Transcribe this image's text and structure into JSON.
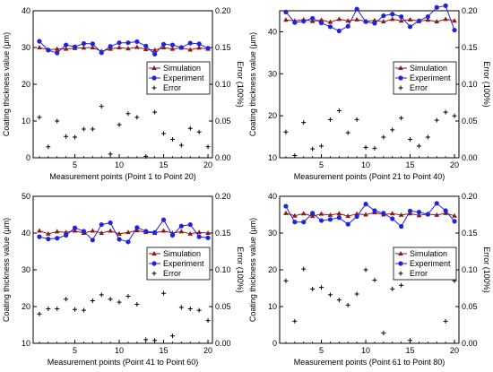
{
  "chart_data": [
    {
      "type": "line",
      "xlabel": "Measurement points (Point 1 to Point 20)",
      "ylabel": "Coating thickness value (μm)",
      "y2label": "Error (100%)",
      "xlim": [
        0.3,
        20.5
      ],
      "ylim": [
        0,
        40
      ],
      "y2lim": [
        0,
        0.2
      ],
      "xticks": [
        "5",
        "10",
        "15",
        "20"
      ],
      "yticks": [
        "0",
        "10",
        "20",
        "30",
        "40"
      ],
      "y2ticks": [
        "0.00",
        "0.05",
        "0.10",
        "0.15",
        "0.20"
      ],
      "legend_position": "center-right",
      "x": [
        1,
        2,
        3,
        4,
        5,
        6,
        7,
        8,
        9,
        10,
        11,
        12,
        13,
        14,
        15,
        16,
        17,
        18,
        19,
        20
      ],
      "series": [
        {
          "name": "Simulation",
          "color": "#8b1a1a",
          "marker": "triangle",
          "axis": "left",
          "values": [
            30.0,
            29.4,
            29.6,
            29.6,
            29.8,
            29.9,
            30.0,
            29.0,
            29.6,
            30.0,
            29.7,
            30.1,
            29.5,
            29.3,
            30.0,
            29.6,
            29.9,
            29.4,
            29.9,
            29.6
          ]
        },
        {
          "name": "Experiment",
          "color": "#2222dd",
          "marker": "circle",
          "axis": "left",
          "values": [
            31.7,
            29.3,
            28.5,
            30.7,
            30.2,
            31.1,
            31.0,
            28.6,
            30.3,
            31.3,
            31.3,
            31.6,
            30.4,
            28.2,
            30.9,
            30.7,
            30.0,
            31.2,
            31.0,
            29.8
          ]
        },
        {
          "name": "Error",
          "color": "#000000",
          "marker": "plus",
          "axis": "right",
          "values": [
            0.055,
            0.015,
            0.05,
            0.029,
            0.028,
            0.039,
            0.039,
            0.07,
            0.005,
            0.045,
            0.06,
            0.055,
            0.002,
            0.062,
            0.033,
            0.025,
            0.017,
            0.04,
            0.035,
            0.015
          ]
        }
      ]
    },
    {
      "type": "line",
      "xlabel": "Measurement points (Point 21 to Point 40)",
      "ylabel": "Coating thickness value (μm)",
      "y2label": "Error (100%)",
      "xlim": [
        0.3,
        20.5
      ],
      "ylim": [
        10,
        45
      ],
      "y2lim": [
        0,
        0.2
      ],
      "xticks": [
        "5",
        "10",
        "15",
        "20"
      ],
      "yticks": [
        "10",
        "20",
        "30",
        "40"
      ],
      "y2ticks": [
        "0.00",
        "0.05",
        "0.10",
        "0.15",
        "0.20"
      ],
      "legend_position": "center-right",
      "x": [
        1,
        2,
        3,
        4,
        5,
        6,
        7,
        8,
        9,
        10,
        11,
        12,
        13,
        14,
        15,
        16,
        17,
        18,
        19,
        20
      ],
      "series": [
        {
          "name": "Simulation",
          "color": "#8b1a1a",
          "marker": "triangle",
          "axis": "left",
          "values": [
            42.8,
            42.6,
            42.9,
            42.5,
            42.8,
            42.3,
            43.0,
            42.6,
            42.9,
            42.5,
            42.7,
            42.4,
            43.0,
            42.6,
            42.9,
            42.5,
            42.8,
            42.4,
            43.0,
            42.6
          ]
        },
        {
          "name": "Experiment",
          "color": "#2222dd",
          "marker": "circle",
          "axis": "left",
          "values": [
            44.7,
            42.2,
            42.5,
            43.2,
            42.1,
            41.2,
            40.2,
            41.3,
            45.4,
            42.4,
            42.0,
            43.8,
            44.2,
            43.6,
            41.2,
            42.6,
            43.6,
            45.8,
            46.2,
            40.4
          ]
        },
        {
          "name": "Error",
          "color": "#000000",
          "marker": "plus",
          "axis": "right",
          "values": [
            0.035,
            0.003,
            0.048,
            0.012,
            0.016,
            0.052,
            0.064,
            0.034,
            0.052,
            0.014,
            0.013,
            0.028,
            0.038,
            0.054,
            0.025,
            0.016,
            0.028,
            0.051,
            0.062,
            0.057
          ]
        }
      ]
    },
    {
      "type": "line",
      "xlabel": "Measurement points (Point 41 to Point 60)",
      "ylabel": "Coating thickness value (μm)",
      "y2label": "Error (100%)",
      "xlim": [
        0.3,
        20.5
      ],
      "ylim": [
        10,
        50
      ],
      "y2lim": [
        0,
        0.2
      ],
      "xticks": [
        "5",
        "10",
        "15",
        "20"
      ],
      "yticks": [
        "10",
        "20",
        "30",
        "40",
        "50"
      ],
      "y2ticks": [
        "0.00",
        "0.05",
        "0.10",
        "0.15",
        "0.20"
      ],
      "legend_position": "center-right",
      "x": [
        1,
        2,
        3,
        4,
        5,
        6,
        7,
        8,
        9,
        10,
        11,
        12,
        13,
        14,
        15,
        16,
        17,
        18,
        19,
        20
      ],
      "series": [
        {
          "name": "Simulation",
          "color": "#8b1a1a",
          "marker": "triangle",
          "axis": "left",
          "values": [
            40.6,
            39.8,
            40.4,
            40.2,
            40.6,
            40.0,
            40.6,
            40.0,
            40.6,
            39.8,
            40.2,
            40.7,
            40.2,
            40.0,
            40.6,
            40.0,
            40.4,
            39.8,
            40.2,
            40.0
          ]
        },
        {
          "name": "Experiment",
          "color": "#2222dd",
          "marker": "circle",
          "axis": "left",
          "values": [
            39.0,
            38.4,
            38.6,
            39.4,
            41.4,
            40.5,
            38.1,
            42.3,
            42.8,
            38.3,
            37.6,
            41.5,
            40.5,
            40.2,
            43.6,
            39.4,
            41.9,
            42.3,
            39.0,
            38.7
          ]
        },
        {
          "name": "Error",
          "color": "#000000",
          "marker": "plus",
          "axis": "right",
          "values": [
            0.04,
            0.047,
            0.047,
            0.06,
            0.046,
            0.045,
            0.058,
            0.066,
            0.06,
            0.056,
            0.064,
            0.053,
            0.005,
            0.004,
            0.068,
            0.01,
            0.049,
            0.047,
            0.045,
            0.031
          ]
        }
      ]
    },
    {
      "type": "line",
      "xlabel": "Measurement points (Point 61 to Point 80)",
      "ylabel": "Coating thickness value (μm)",
      "y2label": "Error (100%)",
      "xlim": [
        0.3,
        20.5
      ],
      "ylim": [
        0,
        40
      ],
      "y2lim": [
        0,
        0.2
      ],
      "xticks": [
        "5",
        "10",
        "15",
        "20"
      ],
      "yticks": [
        "0",
        "10",
        "20",
        "30",
        "40"
      ],
      "y2ticks": [
        "0.00",
        "0.05",
        "0.10",
        "0.15",
        "0.20"
      ],
      "legend_position": "center-right",
      "x": [
        1,
        2,
        3,
        4,
        5,
        6,
        7,
        8,
        9,
        10,
        11,
        12,
        13,
        14,
        15,
        16,
        17,
        18,
        19,
        20
      ],
      "series": [
        {
          "name": "Simulation",
          "color": "#8b1a1a",
          "marker": "triangle",
          "axis": "left",
          "values": [
            35.4,
            34.7,
            35.3,
            34.6,
            35.2,
            34.9,
            35.3,
            34.6,
            35.2,
            35.0,
            35.6,
            35.0,
            35.3,
            34.9,
            35.3,
            34.8,
            35.2,
            34.9,
            35.4,
            34.7
          ]
        },
        {
          "name": "Experiment",
          "color": "#2222dd",
          "marker": "circle",
          "axis": "left",
          "values": [
            37.3,
            33.0,
            33.0,
            35.4,
            33.4,
            33.7,
            34.2,
            32.4,
            34.5,
            37.9,
            36.1,
            35.4,
            33.9,
            31.8,
            36.0,
            35.7,
            35.1,
            38.1,
            36.1,
            33.2
          ]
        },
        {
          "name": "Error",
          "color": "#000000",
          "marker": "plus",
          "axis": "right",
          "values": [
            0.085,
            0.03,
            0.101,
            0.074,
            0.076,
            0.066,
            0.059,
            0.052,
            0.067,
            0.1,
            0.086,
            0.014,
            0.074,
            0.079,
            0.004,
            0.099,
            0.099,
            0.095,
            0.03,
            0.085
          ]
        }
      ]
    }
  ]
}
